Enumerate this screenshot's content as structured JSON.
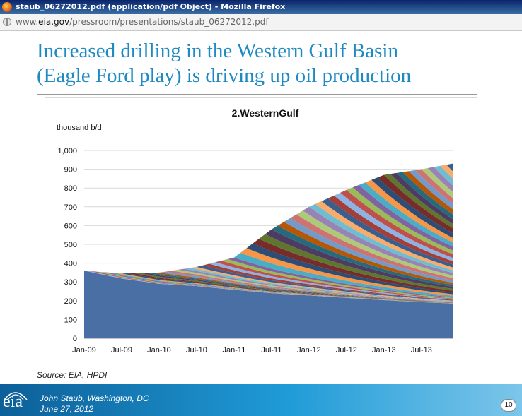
{
  "window": {
    "title": "staub_06272012.pdf (application/pdf Object) - Mozilla Firefox"
  },
  "address_bar": {
    "url_prefix": "www.",
    "url_domain": "eia.gov",
    "url_path": "/pressroom/presentations/staub_06272012.pdf"
  },
  "slide": {
    "title_line1": "Increased drilling in the Western Gulf Basin",
    "title_line2": "(Eagle Ford play) is driving up oil production",
    "source": "Source:  EIA, HPDI",
    "presenter": "John  Staub,  Washington, DC",
    "date": "June 27, 2012",
    "page_number": "10",
    "logo_text": "eia"
  },
  "colors": {
    "title": "#1d8ac2",
    "base_area": "#4a6fa5",
    "footer_start": "#0d5f98",
    "footer_end": "#7cc6ea"
  },
  "chart_data": {
    "type": "area",
    "stacked": true,
    "title": "2.WesternGulf",
    "ylabel": "thousand b/d",
    "xlabel": "",
    "ylim": [
      0,
      1000
    ],
    "yticks": [
      "0",
      "100",
      "200",
      "300",
      "400",
      "500",
      "600",
      "700",
      "800",
      "900",
      "1,000"
    ],
    "xticks": [
      "Jan-09",
      "Jul-09",
      "Jan-10",
      "Jul-10",
      "Jan-11",
      "Jul-11",
      "Jan-12",
      "Jul-12",
      "Jan-13",
      "Jul-13"
    ],
    "x_start": "Jan-09",
    "x_end": "Dec-13",
    "grid": "horizontal",
    "legend": "none",
    "base_series": {
      "description": "production from wells existing in Jan-09",
      "points": [
        [
          "Jan-09",
          360
        ],
        [
          "Jul-09",
          318
        ],
        [
          "Jan-10",
          290
        ],
        [
          "Jul-10",
          278
        ],
        [
          "Jan-11",
          258
        ],
        [
          "Jul-11",
          240
        ],
        [
          "Jan-12",
          228
        ],
        [
          "Jul-12",
          215
        ],
        [
          "Jan-13",
          203
        ],
        [
          "Jul-13",
          192
        ],
        [
          "Dec-13",
          185
        ]
      ]
    },
    "total": {
      "points": [
        [
          "Jan-09",
          360
        ],
        [
          "Jul-09",
          345
        ],
        [
          "Jan-10",
          350
        ],
        [
          "Jul-10",
          380
        ],
        [
          "Jan-11",
          430
        ],
        [
          "Jul-11",
          580
        ],
        [
          "Jan-12",
          700
        ],
        [
          "Jul-12",
          790
        ],
        [
          "Jan-13",
          870
        ],
        [
          "Jul-13",
          900
        ],
        [
          "Dec-13",
          930
        ]
      ]
    }
  }
}
